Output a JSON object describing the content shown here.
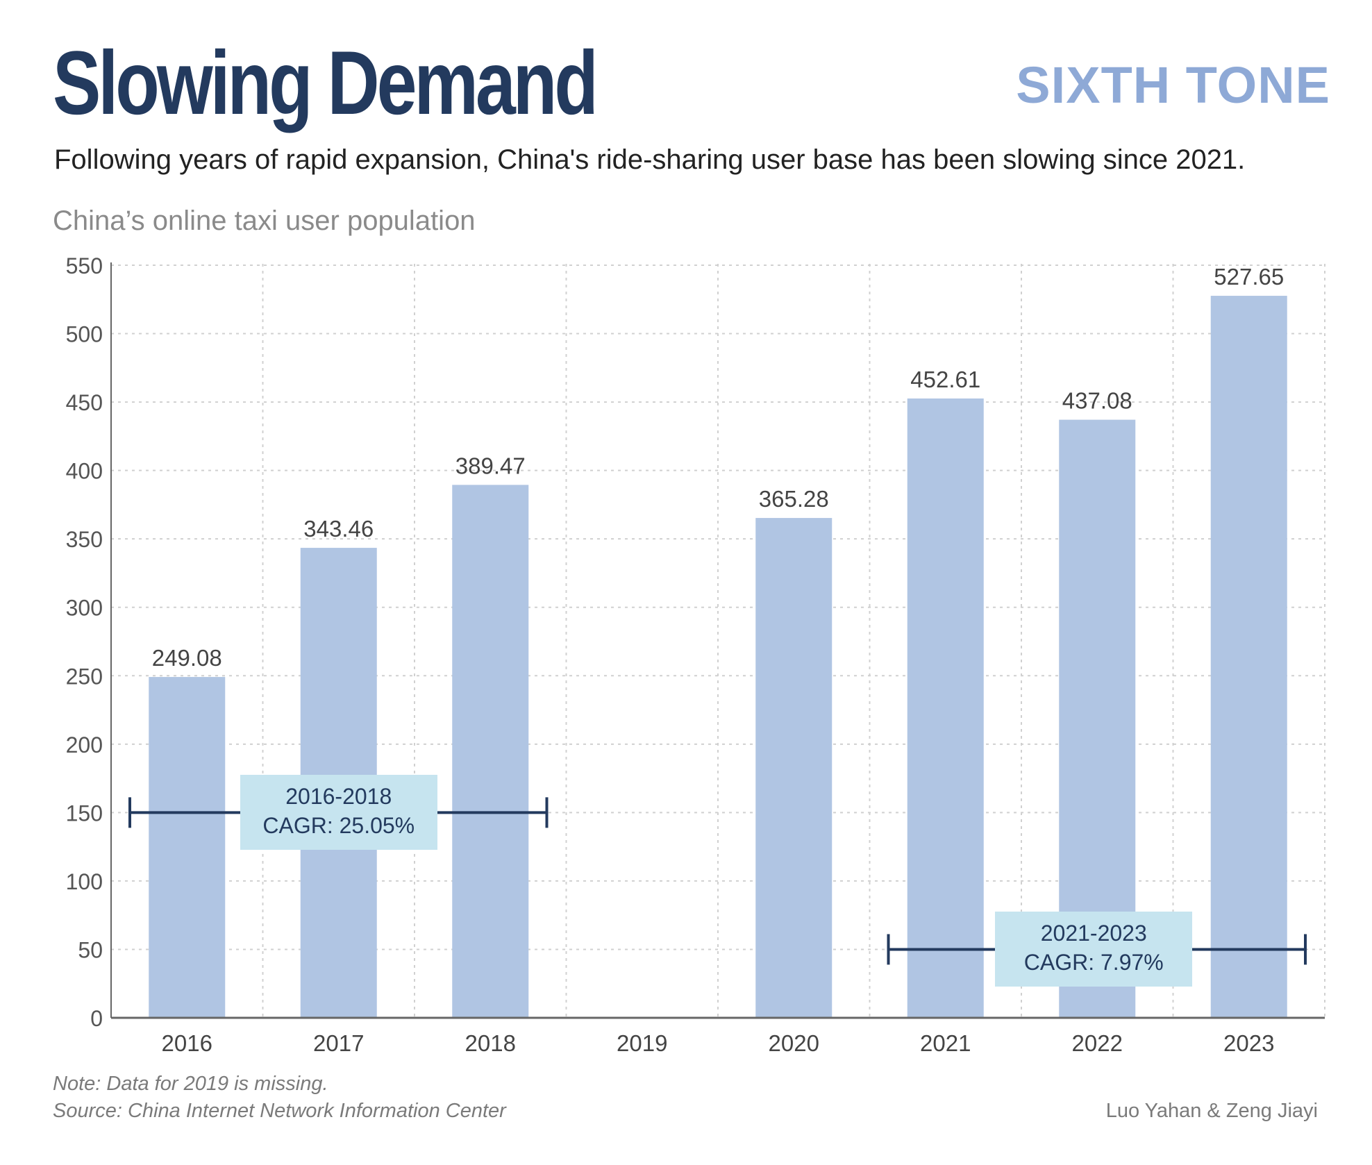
{
  "header": {
    "title": "Slowing Demand",
    "brand": "SIXTH TONE",
    "subtitle": "Following years of rapid expansion, China's ride-sharing user base has been slowing since 2021.",
    "chart_label": "China’s online taxi user population"
  },
  "footer": {
    "note": "Note: Data for 2019 is missing.",
    "source": "Source: China Internet Network Information Center",
    "credit": "Luo Yahan & Zeng Jiayi"
  },
  "colors": {
    "bar": "#b0c5e3",
    "title": "#233a5e",
    "brand": "#8ea9d6",
    "annotation_box": "#c6e4ef",
    "annotation_line": "#233a5e"
  },
  "chart_data": {
    "type": "bar",
    "title": "China’s online taxi user population",
    "xlabel": "",
    "ylabel": "",
    "categories": [
      "2016",
      "2017",
      "2018",
      "2019",
      "2020",
      "2021",
      "2022",
      "2023"
    ],
    "values": [
      249.08,
      343.46,
      389.47,
      null,
      365.28,
      452.61,
      437.08,
      527.65
    ],
    "value_labels": [
      "249.08",
      "343.46",
      "389.47",
      "",
      "365.28",
      "452.61",
      "437.08",
      "527.65"
    ],
    "ylim": [
      0,
      550
    ],
    "yticks": [
      0,
      50,
      100,
      150,
      200,
      250,
      300,
      350,
      400,
      450,
      500,
      550
    ],
    "grid": true,
    "legend": "none",
    "annotations": [
      {
        "period": "2016-2018",
        "label": "CAGR: 25.05%",
        "from": "2016",
        "to": "2018",
        "y": 150
      },
      {
        "period": "2021-2023",
        "label": "CAGR: 7.97%",
        "from": "2021",
        "to": "2023",
        "y": 50
      }
    ]
  }
}
